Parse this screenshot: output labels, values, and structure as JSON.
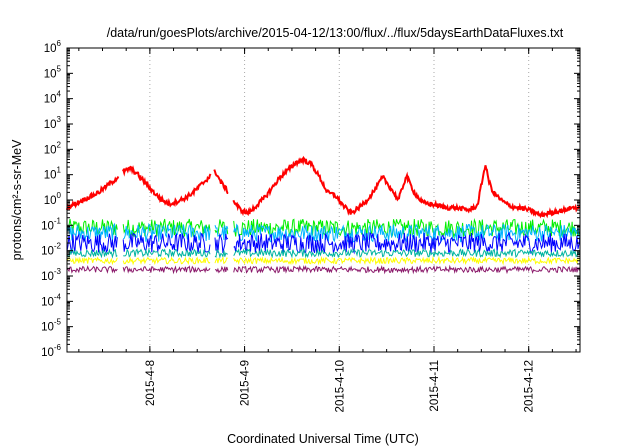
{
  "chart_data": {
    "type": "line",
    "title": "/data/run/goesPlots/archive/2015-04-12/13:00/flux/../flux/5daysEarthDataFluxes.txt",
    "xlabel": "Coordinated Universal Time (UTC)",
    "ylabel": "protons/cm²-s-sr-MeV",
    "y_scale": "log",
    "ylim": [
      1e-06,
      1000000.0
    ],
    "xlim": [
      "2015-04-07 03:00",
      "2015-04-12 13:00"
    ],
    "x_tick_labels": [
      "2015-4-8",
      "2015-4-9",
      "2015-4-10",
      "2015-4-11",
      "2015-4-12"
    ],
    "y_tick_exponents": [
      -6,
      -5,
      -4,
      -3,
      -2,
      -1,
      0,
      1,
      2,
      3,
      4,
      5,
      6
    ],
    "grid": "dotted vertical lines at day boundaries",
    "data_gaps": [
      [
        "2015-04-07 16:00",
        "2015-04-07 17:00"
      ],
      [
        "2015-04-08 15:30",
        "2015-04-08 16:15"
      ],
      [
        "2015-04-08 20:00",
        "2015-04-08 21:00"
      ]
    ],
    "series": [
      {
        "color": "#ff0000",
        "style": "thick",
        "x": [
          "2015-04-07 03:00",
          "2015-04-07 05:00",
          "2015-04-07 07:00",
          "2015-04-07 09:00",
          "2015-04-07 11:00",
          "2015-04-07 13:00",
          "2015-04-07 15:00",
          "2015-04-07 17:00",
          "2015-04-07 19:00",
          "2015-04-07 21:00",
          "2015-04-07 23:00",
          "2015-04-08 01:00",
          "2015-04-08 03:00",
          "2015-04-08 05:00",
          "2015-04-08 07:00",
          "2015-04-08 09:00",
          "2015-04-08 11:00",
          "2015-04-08 13:00",
          "2015-04-08 15:00",
          "2015-04-08 16:30",
          "2015-04-08 18:00",
          "2015-04-08 19:30",
          "2015-04-08 21:00",
          "2015-04-08 23:00",
          "2015-04-09 01:00",
          "2015-04-09 03:00",
          "2015-04-09 05:00",
          "2015-04-09 07:00",
          "2015-04-09 09:00",
          "2015-04-09 11:00",
          "2015-04-09 13:00",
          "2015-04-09 15:00",
          "2015-04-09 17:00",
          "2015-04-09 19:00",
          "2015-04-09 21:00",
          "2015-04-09 23:00",
          "2015-04-10 01:00",
          "2015-04-10 03:00",
          "2015-04-10 05:00",
          "2015-04-10 07:00",
          "2015-04-10 09:00",
          "2015-04-10 11:00",
          "2015-04-10 13:00",
          "2015-04-10 15:00",
          "2015-04-10 17:00",
          "2015-04-10 19:00",
          "2015-04-10 21:00",
          "2015-04-10 23:00",
          "2015-04-11 01:00",
          "2015-04-11 03:00",
          "2015-04-11 05:00",
          "2015-04-11 07:00",
          "2015-04-11 09:00",
          "2015-04-11 11:00",
          "2015-04-11 13:00",
          "2015-04-11 14:00",
          "2015-04-11 15:00",
          "2015-04-11 17:00",
          "2015-04-11 19:00",
          "2015-04-11 21:00",
          "2015-04-11 23:00",
          "2015-04-12 01:00",
          "2015-04-12 03:00",
          "2015-04-12 05:00",
          "2015-04-12 07:00",
          "2015-04-12 09:00",
          "2015-04-12 11:00",
          "2015-04-12 13:00"
        ],
        "values": [
          0.5,
          0.7,
          1.0,
          1.4,
          2.0,
          3.5,
          6.0,
          12,
          18,
          10,
          4.5,
          2.0,
          1.0,
          0.7,
          0.9,
          1.2,
          2.0,
          4.0,
          8.0,
          14,
          5,
          2.5,
          1.0,
          0.4,
          0.3,
          0.6,
          1.2,
          3.0,
          8.0,
          15,
          30,
          40,
          25,
          8,
          2.0,
          1.5,
          0.6,
          0.3,
          0.5,
          1.0,
          2.5,
          8,
          3,
          1.0,
          9,
          2,
          0.8,
          0.7,
          0.6,
          0.5,
          0.5,
          0.45,
          0.4,
          0.6,
          25,
          5,
          2.0,
          1.0,
          0.6,
          0.5,
          0.45,
          0.35,
          0.25,
          0.3,
          0.35,
          0.4,
          0.5,
          0.5
        ]
      },
      {
        "color": "#00ee00",
        "style": "noisy band",
        "x": [
          "2015-04-07 03:00",
          "2015-04-12 13:00"
        ],
        "values": [
          0.08,
          0.08
        ]
      },
      {
        "color": "#00b4ff",
        "style": "noisy band",
        "x": [
          "2015-04-07 03:00",
          "2015-04-12 13:00"
        ],
        "values": [
          0.05,
          0.05
        ]
      },
      {
        "color": "#0000ff",
        "style": "noisy band",
        "x": [
          "2015-04-07 03:00",
          "2015-04-12 13:00"
        ],
        "values": [
          0.02,
          0.02
        ]
      },
      {
        "color": "#00b4a0",
        "style": "noisy band",
        "x": [
          "2015-04-07 03:00",
          "2015-04-12 13:00"
        ],
        "values": [
          0.008,
          0.008
        ]
      },
      {
        "color": "#ffff00",
        "style": "noisy band",
        "x": [
          "2015-04-07 03:00",
          "2015-04-12 13:00"
        ],
        "values": [
          0.004,
          0.004
        ]
      },
      {
        "color": "#8b1a6b",
        "style": "noisy band",
        "x": [
          "2015-04-07 03:00",
          "2015-04-12 13:00"
        ],
        "values": [
          0.0018,
          0.0018
        ]
      }
    ]
  }
}
